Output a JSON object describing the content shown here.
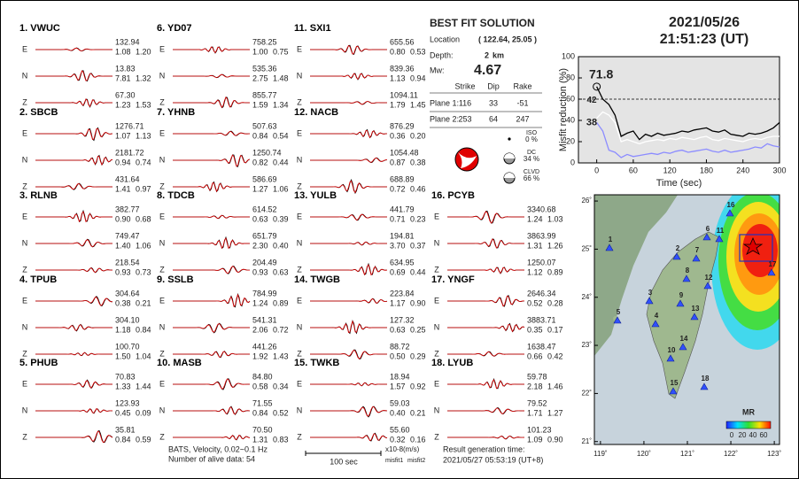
{
  "header": {
    "date": "2021/05/26",
    "time": "21:51:23  (UT)"
  },
  "stations": [
    {
      "label": "1.  VWUC",
      "components": [
        {
          "comp": "E",
          "amp": "132.94",
          "misfit1": "1.08",
          "misfit2": "1.20"
        },
        {
          "comp": "N",
          "amp": "13.83",
          "misfit1": "7.81",
          "misfit2": "1.32"
        },
        {
          "comp": "Z",
          "amp": "67.30",
          "misfit1": "1.23",
          "misfit2": "1.53"
        }
      ]
    },
    {
      "label": "2.  SBCB",
      "components": [
        {
          "comp": "E",
          "amp": "1276.71",
          "misfit1": "1.07",
          "misfit2": "1.13"
        },
        {
          "comp": "N",
          "amp": "2181.72",
          "misfit1": "0.94",
          "misfit2": "0.74"
        },
        {
          "comp": "Z",
          "amp": "431.64",
          "misfit1": "1.41",
          "misfit2": "0.97"
        }
      ]
    },
    {
      "label": "3.  RLNB",
      "components": [
        {
          "comp": "E",
          "amp": "382.77",
          "misfit1": "0.90",
          "misfit2": "0.68"
        },
        {
          "comp": "N",
          "amp": "749.47",
          "misfit1": "1.40",
          "misfit2": "1.06"
        },
        {
          "comp": "Z",
          "amp": "218.54",
          "misfit1": "0.93",
          "misfit2": "0.73"
        }
      ]
    },
    {
      "label": "4.  TPUB",
      "components": [
        {
          "comp": "E",
          "amp": "304.64",
          "misfit1": "0.38",
          "misfit2": "0.21"
        },
        {
          "comp": "N",
          "amp": "304.10",
          "misfit1": "1.18",
          "misfit2": "0.84"
        },
        {
          "comp": "Z",
          "amp": "100.70",
          "misfit1": "1.50",
          "misfit2": "1.04"
        }
      ]
    },
    {
      "label": "5.  PHUB",
      "components": [
        {
          "comp": "E",
          "amp": "70.83",
          "misfit1": "1.33",
          "misfit2": "1.44"
        },
        {
          "comp": "N",
          "amp": "123.93",
          "misfit1": "0.45",
          "misfit2": "0.09"
        },
        {
          "comp": "Z",
          "amp": "35.81",
          "misfit1": "0.84",
          "misfit2": "0.59"
        }
      ]
    },
    {
      "label": "6.  YD07",
      "components": [
        {
          "comp": "E",
          "amp": "758.25",
          "misfit1": "1.00",
          "misfit2": "0.75"
        },
        {
          "comp": "N",
          "amp": "535.36",
          "misfit1": "2.75",
          "misfit2": "1.48"
        },
        {
          "comp": "Z",
          "amp": "855.77",
          "misfit1": "1.59",
          "misfit2": "1.34"
        }
      ]
    },
    {
      "label": "7.  YHNB",
      "components": [
        {
          "comp": "E",
          "amp": "507.63",
          "misfit1": "0.84",
          "misfit2": "0.54"
        },
        {
          "comp": "N",
          "amp": "1250.74",
          "misfit1": "0.82",
          "misfit2": "0.44"
        },
        {
          "comp": "Z",
          "amp": "586.69",
          "misfit1": "1.27",
          "misfit2": "1.06"
        }
      ]
    },
    {
      "label": "8.  TDCB",
      "components": [
        {
          "comp": "E",
          "amp": "614.52",
          "misfit1": "0.63",
          "misfit2": "0.39"
        },
        {
          "comp": "N",
          "amp": "651.79",
          "misfit1": "2.30",
          "misfit2": "0.40"
        },
        {
          "comp": "Z",
          "amp": "204.49",
          "misfit1": "0.93",
          "misfit2": "0.63"
        }
      ]
    },
    {
      "label": "9.  SSLB",
      "components": [
        {
          "comp": "E",
          "amp": "784.99",
          "misfit1": "1.24",
          "misfit2": "0.89"
        },
        {
          "comp": "N",
          "amp": "541.31",
          "misfit1": "2.06",
          "misfit2": "0.72"
        },
        {
          "comp": "Z",
          "amp": "441.26",
          "misfit1": "1.92",
          "misfit2": "1.43"
        }
      ]
    },
    {
      "label": "10. MASB",
      "components": [
        {
          "comp": "E",
          "amp": "84.80",
          "misfit1": "0.58",
          "misfit2": "0.34"
        },
        {
          "comp": "N",
          "amp": "71.55",
          "misfit1": "0.84",
          "misfit2": "0.52"
        },
        {
          "comp": "Z",
          "amp": "70.50",
          "misfit1": "1.31",
          "misfit2": "0.83"
        }
      ]
    },
    {
      "label": "11. SXI1",
      "components": [
        {
          "comp": "E",
          "amp": "655.56",
          "misfit1": "0.80",
          "misfit2": "0.53"
        },
        {
          "comp": "N",
          "amp": "839.36",
          "misfit1": "1.13",
          "misfit2": "0.94"
        },
        {
          "comp": "Z",
          "amp": "1094.11",
          "misfit1": "1.79",
          "misfit2": "1.45"
        }
      ]
    },
    {
      "label": "12. NACB",
      "components": [
        {
          "comp": "E",
          "amp": "876.29",
          "misfit1": "0.36",
          "misfit2": "0.20"
        },
        {
          "comp": "N",
          "amp": "1054.48",
          "misfit1": "0.87",
          "misfit2": "0.38"
        },
        {
          "comp": "Z",
          "amp": "688.89",
          "misfit1": "0.72",
          "misfit2": "0.46"
        }
      ]
    },
    {
      "label": "13. YULB",
      "components": [
        {
          "comp": "E",
          "amp": "441.79",
          "misfit1": "0.71",
          "misfit2": "0.23"
        },
        {
          "comp": "N",
          "amp": "194.81",
          "misfit1": "3.70",
          "misfit2": "0.37"
        },
        {
          "comp": "Z",
          "amp": "634.95",
          "misfit1": "0.69",
          "misfit2": "0.44"
        }
      ]
    },
    {
      "label": "14. TWGB",
      "components": [
        {
          "comp": "E",
          "amp": "223.84",
          "misfit1": "1.17",
          "misfit2": "0.90"
        },
        {
          "comp": "N",
          "amp": "127.32",
          "misfit1": "0.63",
          "misfit2": "0.25"
        },
        {
          "comp": "Z",
          "amp": "88.72",
          "misfit1": "0.50",
          "misfit2": "0.29"
        }
      ]
    },
    {
      "label": "15. TWKB",
      "components": [
        {
          "comp": "E",
          "amp": "18.94",
          "misfit1": "1.57",
          "misfit2": "0.92"
        },
        {
          "comp": "N",
          "amp": "59.03",
          "misfit1": "0.40",
          "misfit2": "0.21"
        },
        {
          "comp": "Z",
          "amp": "55.60",
          "misfit1": "0.32",
          "misfit2": "0.16"
        }
      ]
    },
    {
      "label": "16. PCYB",
      "components": [
        {
          "comp": "E",
          "amp": "3340.68",
          "misfit1": "1.24",
          "misfit2": "1.03"
        },
        {
          "comp": "N",
          "amp": "3863.99",
          "misfit1": "1.31",
          "misfit2": "1.26"
        },
        {
          "comp": "Z",
          "amp": "1250.07",
          "misfit1": "1.12",
          "misfit2": "0.89"
        }
      ]
    },
    {
      "label": "17. YNGF",
      "components": [
        {
          "comp": "E",
          "amp": "2646.34",
          "misfit1": "0.52",
          "misfit2": "0.28"
        },
        {
          "comp": "N",
          "amp": "3883.71",
          "misfit1": "0.35",
          "misfit2": "0.17"
        },
        {
          "comp": "Z",
          "amp": "1638.47",
          "misfit1": "0.66",
          "misfit2": "0.42"
        }
      ]
    },
    {
      "label": "18. LYUB",
      "components": [
        {
          "comp": "E",
          "amp": "59.78",
          "misfit1": "2.18",
          "misfit2": "1.46"
        },
        {
          "comp": "N",
          "amp": "79.52",
          "misfit1": "1.71",
          "misfit2": "1.27"
        },
        {
          "comp": "Z",
          "amp": "101.23",
          "misfit1": "1.09",
          "misfit2": "0.90"
        }
      ]
    }
  ],
  "solution": {
    "title": "BEST FIT SOLUTION",
    "location_label": "Location",
    "location": "( 122.64,  25.05 )",
    "depth_label": "Depth:",
    "depth": "2",
    "depth_unit": "km",
    "mw_label": "Mw:",
    "mw": "4.67",
    "table": {
      "columns": [
        "Strike",
        "Dip",
        "Rake"
      ],
      "rows": [
        {
          "label": "Plane 1:",
          "values": [
            "116",
            "33",
            "-51"
          ]
        },
        {
          "label": "Plane 2:",
          "values": [
            "253",
            "64",
            "247"
          ]
        }
      ]
    },
    "components": [
      {
        "name": "ISO",
        "percent": "0 %"
      },
      {
        "name": "DC",
        "percent": "34 %"
      },
      {
        "name": "CLVD",
        "percent": "66 %"
      }
    ]
  },
  "footer": {
    "filter": "BATS, Velocity, 0.02~0.1 Hz",
    "alive": "Number of alive data: 54",
    "scale": "100 sec",
    "unit": "x10-8(m/s)",
    "misfit1": "misfit1",
    "misfit2": "misfit2",
    "gen_label": "Result generation time:",
    "gen_time": "2021/05/27 05:53:19 (UT+8)"
  },
  "chart_data": {
    "type": "line",
    "ylabel": "Misfit reduction (%)",
    "xlabel": "Time (sec)",
    "x": [
      0,
      10,
      20,
      30,
      40,
      50,
      60,
      70,
      80,
      90,
      100,
      110,
      120,
      130,
      140,
      150,
      160,
      170,
      180,
      190,
      200,
      210,
      220,
      230,
      240,
      250,
      260,
      270,
      280,
      290,
      300
    ],
    "series": [
      {
        "color": "#000000",
        "values": [
          71.8,
          60,
          55,
          45,
          25,
          28,
          30,
          22,
          27,
          25,
          28,
          26,
          27,
          28,
          30,
          29,
          31,
          32,
          33,
          30,
          29,
          31,
          27,
          26,
          25,
          28,
          27,
          28,
          30,
          33,
          38
        ]
      },
      {
        "color": "#ffffff",
        "values": [
          42,
          48,
          45,
          38,
          20,
          22,
          20,
          18,
          20,
          21,
          22,
          21,
          23,
          22,
          24,
          23,
          22,
          24,
          25,
          22,
          21,
          23,
          22,
          21,
          20,
          22,
          23,
          22,
          24,
          25,
          25
        ]
      },
      {
        "color": "#8c8cff",
        "values": [
          38,
          30,
          12,
          10,
          5,
          8,
          6,
          7,
          8,
          9,
          8,
          10,
          9,
          11,
          12,
          10,
          11,
          12,
          13,
          11,
          10,
          12,
          10,
          11,
          12,
          13,
          15,
          14,
          18,
          16,
          15
        ]
      }
    ],
    "annotations": [
      {
        "text": "71.8",
        "color": "#e00000"
      },
      {
        "text": "42",
        "color": "#999999"
      },
      {
        "text": "38",
        "color": "#8c8cff"
      }
    ],
    "reference_line": 60,
    "xlim": [
      -30,
      300
    ],
    "xticks": [
      0,
      60,
      120,
      180,
      240,
      300
    ],
    "ylim": [
      0,
      100
    ],
    "yticks": [
      0,
      20,
      40,
      60,
      80,
      100
    ]
  },
  "map": {
    "lonlim": [
      118.86,
      123.12
    ],
    "latlim": [
      20.94,
      26.13
    ],
    "lon_ticks": [
      {
        "value": 119,
        "label": "119˚"
      },
      {
        "value": 120,
        "label": "120˚"
      },
      {
        "value": 121,
        "label": "121˚"
      },
      {
        "value": 122,
        "label": "122˚"
      },
      {
        "value": 123,
        "label": "123˚"
      }
    ],
    "lat_ticks": [
      {
        "value": 21,
        "label": "21˚"
      },
      {
        "value": 22,
        "label": "22˚"
      },
      {
        "value": 23,
        "label": "23˚"
      },
      {
        "value": 24,
        "label": "24˚"
      },
      {
        "value": 25,
        "label": "25˚"
      },
      {
        "value": 26,
        "label": "26˚"
      }
    ],
    "station_ids": [
      "1",
      "2",
      "3",
      "4",
      "5",
      "6",
      "7",
      "8",
      "9",
      "10",
      "11",
      "12",
      "13",
      "14",
      "15",
      "16",
      "17",
      "18"
    ],
    "colorbar": {
      "title": "MR",
      "labels": [
        "0",
        "20",
        "40",
        "60"
      ]
    }
  }
}
